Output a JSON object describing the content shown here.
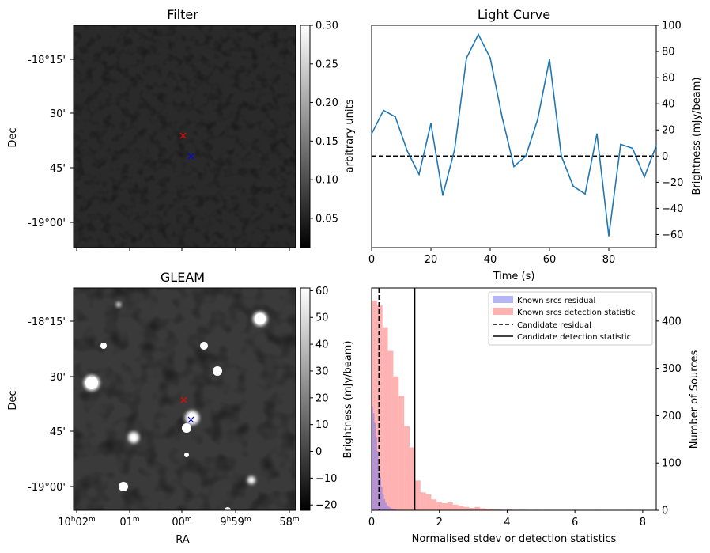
{
  "chart_data": [
    {
      "type": "heatmap",
      "title": "Filter",
      "ylabel": "Dec",
      "dec_ticks": [
        "-18°15'",
        "30'",
        "45'",
        "-19°00'"
      ],
      "colorbar": {
        "label": "arbitrary units",
        "range": [
          0.012,
          0.3
        ],
        "ticks": [
          "0.05",
          "0.10",
          "0.15",
          "0.20",
          "0.25",
          "0.30"
        ],
        "colormap": "gray"
      },
      "markers": [
        {
          "symbol": "x",
          "color": "#ff0000"
        },
        {
          "symbol": "x",
          "color": "#0000ff"
        }
      ]
    },
    {
      "type": "line",
      "title": "Light Curve",
      "xlabel": "Time (s)",
      "ylabel": "Brightness (mJy/beam)",
      "xlim": [
        0,
        96
      ],
      "ylim": [
        -70,
        100
      ],
      "x_ticks": [
        "0",
        "20",
        "40",
        "60",
        "80"
      ],
      "y_ticks": [
        "−60",
        "−40",
        "−20",
        "0",
        "20",
        "40",
        "60",
        "80",
        "100"
      ],
      "line_color": "#1f77b4",
      "reference_line": {
        "y": 0,
        "style": "dashed",
        "color": "#000000"
      },
      "x": [
        0,
        4,
        8,
        12,
        16,
        20,
        24,
        28,
        32,
        36,
        40,
        44,
        48,
        52,
        56,
        60,
        64,
        68,
        72,
        76,
        80,
        84,
        88,
        92,
        96
      ],
      "y": [
        17,
        35,
        30,
        4,
        -14,
        25,
        -30,
        5,
        75,
        93,
        75,
        30,
        -8,
        0,
        28,
        74,
        0,
        -23,
        -29,
        17,
        -61,
        9,
        6,
        -16,
        8
      ]
    },
    {
      "type": "heatmap",
      "title": "GLEAM",
      "xlabel": "RA",
      "ylabel": "Dec",
      "dec_ticks": [
        "-18°15'",
        "30'",
        "45'",
        "-19°00'"
      ],
      "ra_ticks": [
        {
          "main": "10",
          "sup1": "h",
          "mid": "02",
          "sup2": "m"
        },
        {
          "main": "01",
          "sup1": "m",
          "mid": "",
          "sup2": ""
        },
        {
          "main": "00",
          "sup1": "m",
          "mid": "",
          "sup2": ""
        },
        {
          "main": "9",
          "sup1": "h",
          "mid": "59",
          "sup2": "m"
        },
        {
          "main": "58",
          "sup1": "m",
          "mid": "",
          "sup2": ""
        }
      ],
      "colorbar": {
        "label": "Brightness (mJy/beam)",
        "range": [
          -22,
          61
        ],
        "ticks": [
          "−20",
          "−10",
          "0",
          "10",
          "20",
          "30",
          "40",
          "50",
          "60"
        ],
        "colormap": "gray"
      },
      "markers": [
        {
          "symbol": "x",
          "color": "#ff0000"
        },
        {
          "symbol": "x",
          "color": "#0000ff"
        }
      ]
    },
    {
      "type": "bar",
      "subtype": "histogram",
      "xlabel": "Normalised stdev or detection statistics",
      "ylabel": "Number of Sources",
      "xlim": [
        0,
        8.4
      ],
      "ylim": [
        0,
        470
      ],
      "x_ticks": [
        "0",
        "2",
        "4",
        "6",
        "8"
      ],
      "y_ticks": [
        "0",
        "100",
        "200",
        "300",
        "400"
      ],
      "legend_position": "top-right",
      "series": [
        {
          "name": "Known srcs residual",
          "color": "#7777ee",
          "bin_width": 0.04,
          "x_start": 0.0,
          "values": [
            220,
            205,
            185,
            155,
            125,
            95,
            70,
            50,
            35,
            24,
            16,
            11,
            8,
            6,
            4,
            3,
            2,
            2,
            1,
            1,
            1
          ]
        },
        {
          "name": "Known srcs detection statistic",
          "color": "#ff7f7f",
          "bin_width": 0.16,
          "x_start": 0.0,
          "values": [
            443,
            433,
            387,
            337,
            283,
            242,
            178,
            133,
            63,
            38,
            34,
            23,
            18,
            15,
            17,
            12,
            10,
            7,
            5,
            7,
            4,
            3,
            2,
            2,
            1,
            2,
            1,
            1,
            1,
            0,
            1,
            0,
            1,
            0,
            0,
            0,
            0,
            1,
            0,
            0,
            0,
            1,
            0,
            0,
            0,
            0,
            0,
            1
          ]
        }
      ],
      "reference_lines": [
        {
          "name": "Candidate residual",
          "x": 0.22,
          "style": "dashed",
          "color": "#000000"
        },
        {
          "name": "Candidate detection statistic",
          "x": 1.27,
          "style": "solid",
          "color": "#000000"
        }
      ]
    }
  ]
}
